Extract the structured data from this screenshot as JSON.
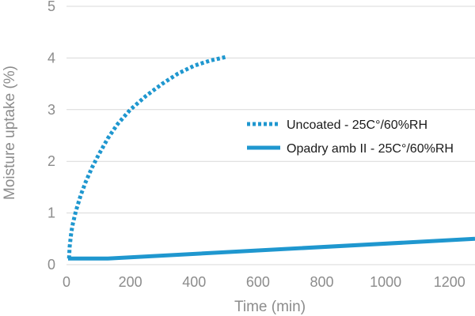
{
  "chart_data": {
    "type": "line",
    "xlabel": "Time (min)",
    "ylabel": "Moisture uptake (%)",
    "xlim": [
      0,
      1280
    ],
    "ylim": [
      0,
      5
    ],
    "xticks": [
      0,
      200,
      400,
      600,
      800,
      1000,
      1200
    ],
    "yticks": [
      0,
      1,
      2,
      3,
      4,
      5
    ],
    "grid": true,
    "grid_axis": "y",
    "legend_position": "center-right",
    "series": [
      {
        "name": "Uncoated - 25C°/60%RH",
        "style": "dotted",
        "color": "#1f97cf",
        "x": [
          8,
          10,
          15,
          20,
          30,
          45,
          60,
          80,
          100,
          130,
          160,
          200,
          250,
          300,
          350,
          400,
          450,
          500
        ],
        "y": [
          0.12,
          0.35,
          0.62,
          0.8,
          1.05,
          1.35,
          1.6,
          1.88,
          2.12,
          2.45,
          2.72,
          3.0,
          3.27,
          3.5,
          3.7,
          3.85,
          3.95,
          4.02
        ]
      },
      {
        "name": "Opadry amb II - 25C°/60%RH",
        "style": "solid",
        "color": "#1f97cf",
        "x": [
          5,
          130,
          1280
        ],
        "y": [
          0.12,
          0.12,
          0.5
        ]
      }
    ]
  }
}
